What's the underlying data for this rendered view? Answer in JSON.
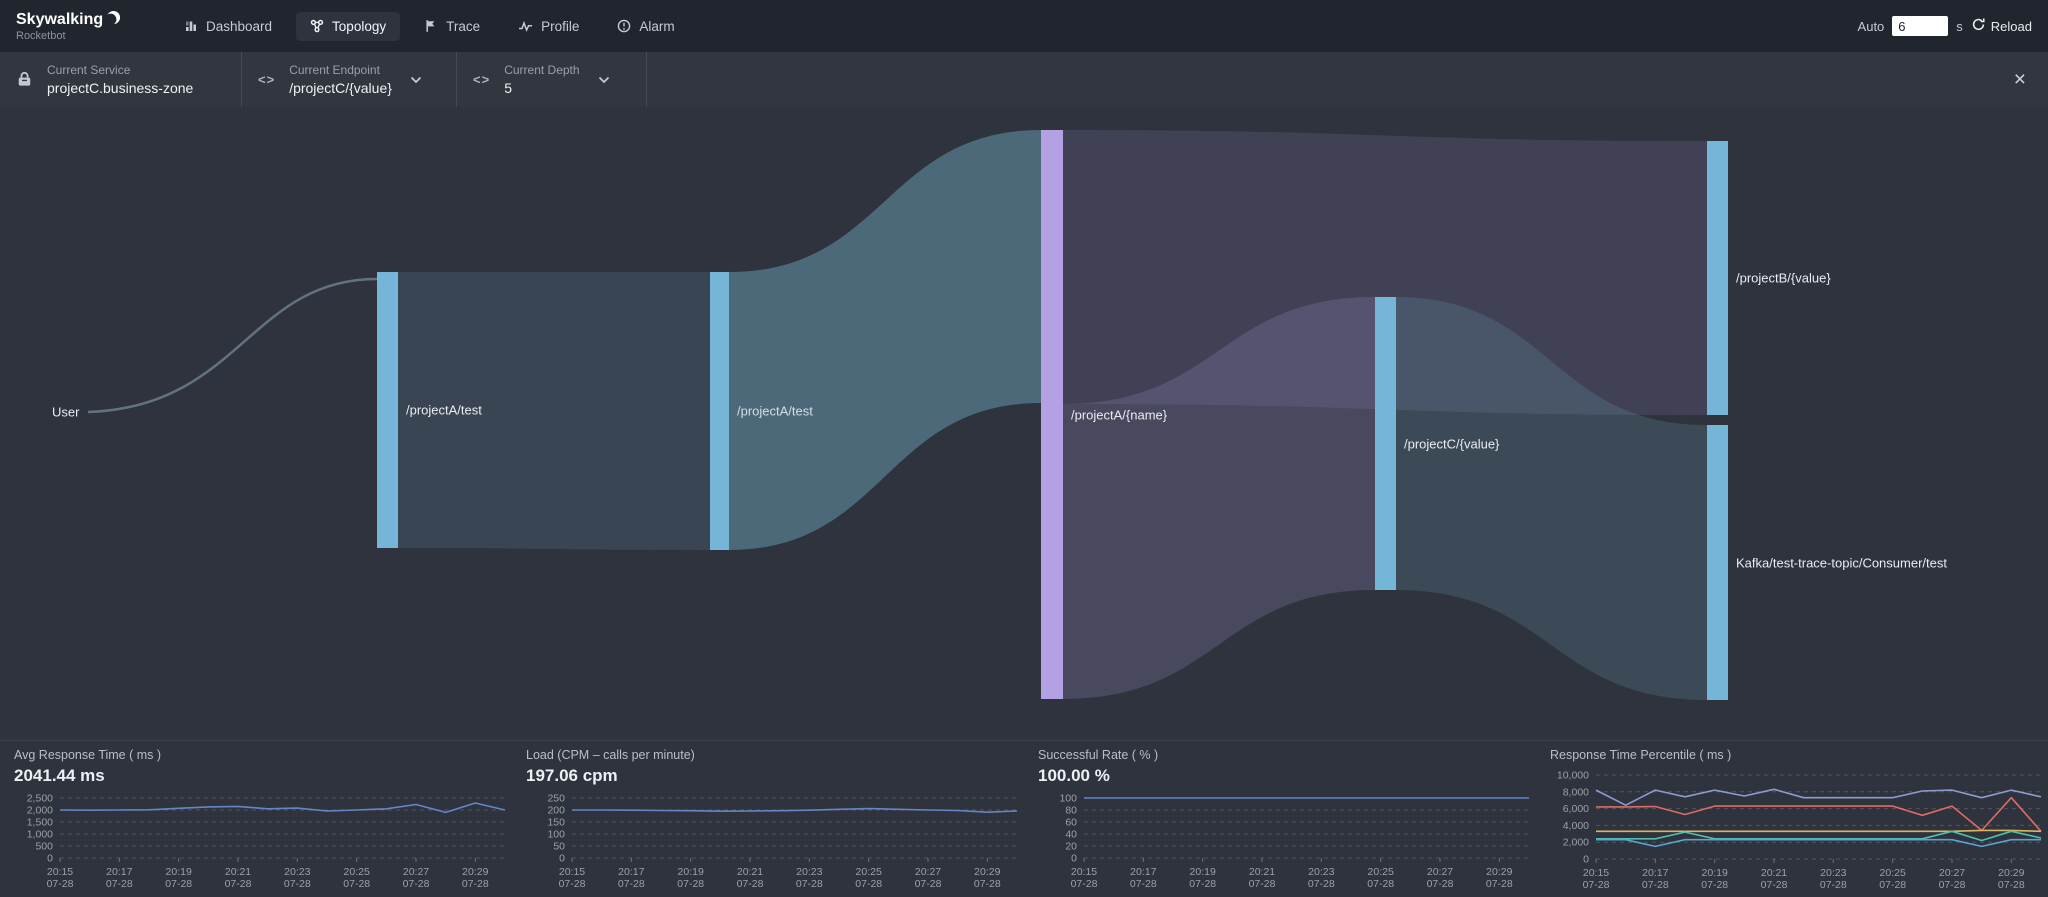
{
  "nav": {
    "logo_title": "Skywalking",
    "logo_subtitle": "Rocketbot",
    "tabs": [
      {
        "label": "Dashboard",
        "active": false
      },
      {
        "label": "Topology",
        "active": true
      },
      {
        "label": "Trace",
        "active": false
      },
      {
        "label": "Profile",
        "active": false
      },
      {
        "label": "Alarm",
        "active": false
      }
    ],
    "auto_label": "Auto",
    "auto_value": "6",
    "auto_unit": "s",
    "reload_label": "Reload"
  },
  "toolbar": {
    "groups": [
      {
        "label": "Current Service",
        "value": "projectC.business-zone",
        "icon": "lock-icon"
      },
      {
        "label": "Current Endpoint",
        "value": "/projectC/{value}",
        "icon": "code-icon"
      },
      {
        "label": "Current Depth",
        "value": "5",
        "icon": "code-icon"
      }
    ],
    "close_label": "×"
  },
  "sankey": {
    "node_color": "#74b5d8",
    "highlight_node_color": "#b3a1e3",
    "nodes": [
      {
        "label": "User"
      },
      {
        "label": "/projectA/test"
      },
      {
        "label": "/projectA/test"
      },
      {
        "label": "/projectA/{name}"
      },
      {
        "label": "/projectC/{value}"
      },
      {
        "label": "/projectB/{value}"
      },
      {
        "label": "Kafka/test-trace-topic/Consumer/test"
      }
    ],
    "links": [
      {
        "source": "User",
        "target": "/projectA/test"
      },
      {
        "source": "/projectA/test",
        "target": "/projectA/test"
      },
      {
        "source": "/projectA/test",
        "target": "/projectA/{name}"
      },
      {
        "source": "/projectA/{name}",
        "target": "/projectB/{value}"
      },
      {
        "source": "/projectA/{name}",
        "target": "/projectC/{value}"
      },
      {
        "source": "/projectC/{value}",
        "target": "Kafka/test-trace-topic/Consumer/test"
      }
    ]
  },
  "chart_data": {
    "type": "line",
    "x_ticks": [
      "20:15",
      "20:17",
      "20:19",
      "20:21",
      "20:23",
      "20:25",
      "20:27",
      "20:29"
    ],
    "x_date": "07-28",
    "grid": "dashed",
    "legend": "none",
    "items": [
      {
        "title": "Avg Response Time ( ms )",
        "value": "2041.44 ms",
        "ylim": [
          0,
          2500
        ],
        "y_ticks": [
          "0",
          "500",
          "1,000",
          "1,500",
          "2,000",
          "2,500"
        ],
        "series": [
          {
            "color": "#6387c6",
            "values": [
              2000,
              1990,
              2000,
              2010,
              2070,
              2130,
              2150,
              2050,
              2080,
              1960,
              2000,
              2050,
              2230,
              1900,
              2290,
              2000
            ]
          }
        ]
      },
      {
        "title": "Load (CPM – calls per minute)",
        "value": "197.06 cpm",
        "ylim": [
          0,
          250
        ],
        "y_ticks": [
          "0",
          "50",
          "100",
          "150",
          "200",
          "250"
        ],
        "series": [
          {
            "color": "#6387c6",
            "values": [
              200,
              200,
              199,
              198,
              197,
              195,
              196,
              197,
              199,
              203,
              206,
              203,
              200,
              198,
              191,
              196
            ]
          }
        ]
      },
      {
        "title": "Successful Rate ( % )",
        "value": "100.00 %",
        "ylim": [
          0,
          100
        ],
        "y_ticks": [
          "0",
          "20",
          "40",
          "60",
          "80",
          "100"
        ],
        "series": [
          {
            "color": "#6387c6",
            "values": [
              100,
              100,
              100,
              100,
              100,
              100,
              100,
              100,
              100,
              100,
              100,
              100,
              100,
              100,
              100,
              100
            ]
          }
        ]
      },
      {
        "title": "Response Time Percentile ( ms )",
        "value": "",
        "ylim": [
          0,
          10000
        ],
        "y_ticks": [
          "0",
          "2,000",
          "4,000",
          "6,000",
          "8,000",
          "10,000"
        ],
        "series": [
          {
            "color": "#8f9bd0",
            "values": [
              8200,
              6400,
              8200,
              7400,
              8200,
              7500,
              8300,
              7300,
              7300,
              7300,
              7300,
              8100,
              8200,
              7300,
              8200,
              7400
            ]
          },
          {
            "color": "#dd6b66",
            "values": [
              6200,
              6200,
              6250,
              5300,
              6300,
              6300,
              6300,
              6300,
              6300,
              6300,
              6300,
              5200,
              6300,
              3400,
              7300,
              3300
            ]
          },
          {
            "color": "#d9b662",
            "values": [
              3300,
              3300,
              3300,
              3300,
              3300,
              3300,
              3300,
              3300,
              3300,
              3300,
              3300,
              3300,
              3300,
              3400,
              3400,
              3300
            ]
          },
          {
            "color": "#4fc0ae",
            "values": [
              2400,
              2400,
              2400,
              3200,
              2400,
              2400,
              2400,
              2400,
              2400,
              2400,
              2400,
              2400,
              3300,
              2200,
              3300,
              2500
            ]
          },
          {
            "color": "#58a3d8",
            "values": [
              2300,
              2300,
              1500,
              2300,
              2300,
              2300,
              2300,
              2300,
              2300,
              2300,
              2300,
              2300,
              2300,
              1500,
              2300,
              2300
            ]
          }
        ]
      }
    ]
  }
}
